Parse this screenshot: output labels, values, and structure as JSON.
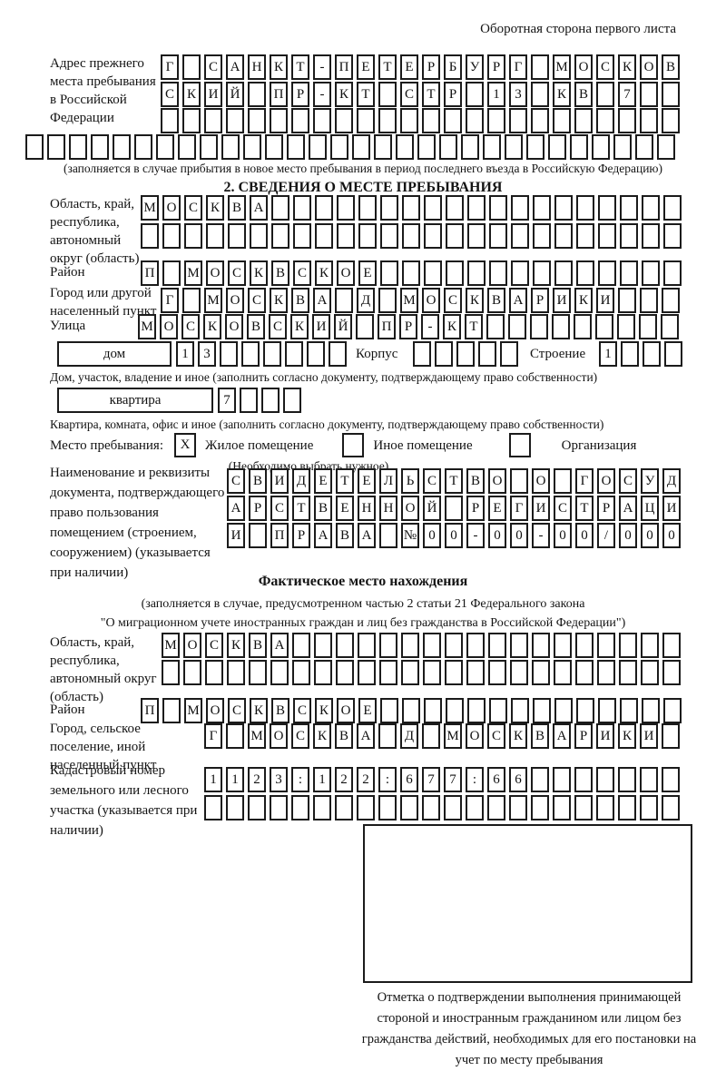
{
  "colors": {
    "ink": "#1b1b1b",
    "paper": "#ffffff"
  },
  "page": {
    "header_note": "Оборотная сторона первого листа"
  },
  "prev_address": {
    "label": "Адрес прежнего места пребывания в Российской Федерации",
    "rows": [
      "Г САНКТ-ПЕТЕРБУРГ МОСКОВ",
      "СКИЙ ПР-КТ СТР 13 КВ 7  ",
      "                        ",
      "                              "
    ],
    "note": "(заполняется в случае прибытия в новое место пребывания в период последнего въезда в Российскую Федерацию)"
  },
  "section2": {
    "title": "2. СВЕДЕНИЯ О МЕСТЕ ПРЕБЫВАНИЯ",
    "oblast": {
      "label": "Область, край, республика, автономный округ (область)",
      "rows": [
        "МОСКВА                   ",
        "                         "
      ]
    },
    "raion": {
      "label": "Район",
      "row": "П МОСКВСКОЕ              "
    },
    "gorod": {
      "label": "Город или другой населенный пункт",
      "row": "Г МОСКВА Д МОСКВАРИКИ   "
    },
    "ulitsa": {
      "label": "Улица",
      "row": "МОСКОВСКИЙ ПР-КТ         "
    },
    "dom": {
      "box_label": "дом",
      "cells": "13      ",
      "korpus_label": "Корпус",
      "korpus_cells": "     ",
      "stroenie_label": "Строение",
      "stroenie_cells": "1   ",
      "note": "Дом, участок, владение и иное (заполнить согласно документу, подтверждающему право собственности)"
    },
    "kvartira": {
      "box_label": "квартира",
      "cells": "7   ",
      "note": "Квартира, комната, офис и иное (заполнить согласно документу, подтверждающему право собственности)"
    },
    "mesto": {
      "label": "Место пребывания:",
      "options": [
        {
          "label": "Жилое помещение",
          "checked": "X"
        },
        {
          "label": "Иное помещение",
          "checked": ""
        },
        {
          "label": "Организация",
          "checked": ""
        }
      ],
      "note": "(Необходимо выбрать нужное)"
    },
    "doc": {
      "label": "Наименование и реквизиты документа, подтверждающего право пользования помещением (строением, сооружением) (указывается при наличии)",
      "rows": [
        "СВИДЕТЕЛЬСТВО О ГОСУД",
        "АРСТВЕННОЙ РЕГИСТРАЦИ",
        "И ПРАВА №00-00-00/000"
      ]
    }
  },
  "factual": {
    "title": "Фактическое место нахождения",
    "note1": "(заполняется в случае, предусмотренном частью 2 статьи 21 Федерального закона",
    "note2": "\"О миграционном учете иностранных граждан и лиц без гражданства в Российской Федерации\")",
    "oblast": {
      "label": "Область, край, республика, автономный округ (область)",
      "rows": [
        "МОСКВА                  ",
        "                        "
      ]
    },
    "raion": {
      "label": "Район",
      "row": "П МОСКВСКОЕ              "
    },
    "gorod": {
      "label": "Город, сельское поселение, иной населенный пункт",
      "row": "Г МОСКВА Д МОСКВАРИКИ "
    },
    "kadastr": {
      "label": "Кадастровый номер земельного или лесного участка (указывается при наличии)",
      "rows": [
        "1123:122:677:66       ",
        "                      "
      ]
    },
    "stamp_caption": "Отметка о подтверждении выполнения принимающей стороной и иностранным гражданином или лицом без гражданства действий, необходимых для его постановки на учет по месту пребывания"
  }
}
